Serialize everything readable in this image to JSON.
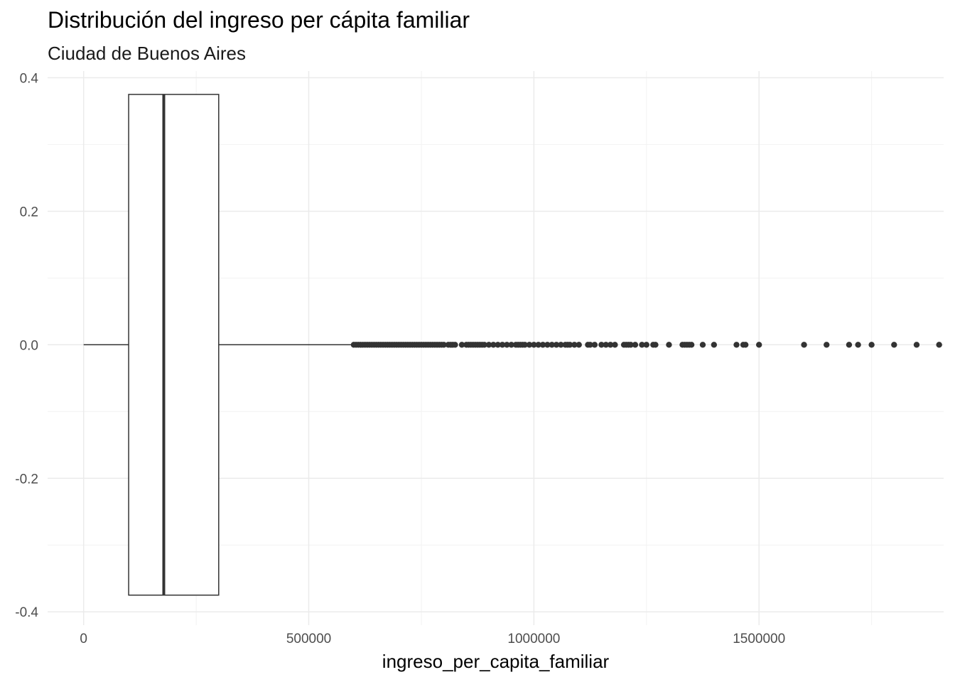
{
  "chart_data": {
    "type": "boxplot",
    "title": "Distribución del ingreso per cápita familiar",
    "subtitle": "Ciudad de Buenos Aires",
    "xlabel": "ingreso_per_capita_familiar",
    "ylabel": "",
    "xlim": [
      -80000,
      1910000
    ],
    "ylim": [
      -0.42,
      0.41
    ],
    "x_ticks": [
      0,
      500000,
      1000000,
      1500000
    ],
    "x_tick_labels": [
      "0",
      "500000",
      "1000000",
      "1500000"
    ],
    "y_ticks": [
      -0.4,
      -0.2,
      0.0,
      0.2,
      0.4
    ],
    "y_tick_labels": [
      "-0.4",
      "-0.2",
      "0.0",
      "0.2",
      "0.4"
    ],
    "grid": true,
    "box": {
      "min": 0,
      "q1": 100000,
      "median": 178000,
      "q3": 300000,
      "whisker_high": 600000,
      "y_center": 0.0,
      "half_width": 0.375
    },
    "outliers": [
      600000,
      605000,
      610000,
      615000,
      620000,
      625000,
      630000,
      635000,
      640000,
      645000,
      650000,
      655000,
      660000,
      665000,
      670000,
      675000,
      680000,
      685000,
      690000,
      695000,
      700000,
      705000,
      710000,
      715000,
      720000,
      725000,
      730000,
      735000,
      740000,
      745000,
      750000,
      755000,
      760000,
      765000,
      770000,
      775000,
      780000,
      785000,
      790000,
      795000,
      800000,
      810000,
      815000,
      820000,
      825000,
      840000,
      850000,
      855000,
      860000,
      865000,
      870000,
      875000,
      880000,
      885000,
      890000,
      900000,
      910000,
      920000,
      930000,
      940000,
      950000,
      960000,
      965000,
      970000,
      975000,
      980000,
      990000,
      1000000,
      1010000,
      1020000,
      1030000,
      1040000,
      1050000,
      1060000,
      1070000,
      1075000,
      1080000,
      1090000,
      1100000,
      1120000,
      1125000,
      1135000,
      1150000,
      1160000,
      1170000,
      1180000,
      1200000,
      1205000,
      1210000,
      1215000,
      1225000,
      1240000,
      1250000,
      1265000,
      1270000,
      1300000,
      1330000,
      1335000,
      1340000,
      1345000,
      1350000,
      1375000,
      1400000,
      1450000,
      1465000,
      1470000,
      1500000,
      1600000,
      1650000,
      1700000,
      1720000,
      1750000,
      1800000,
      1850000,
      1900000
    ]
  }
}
